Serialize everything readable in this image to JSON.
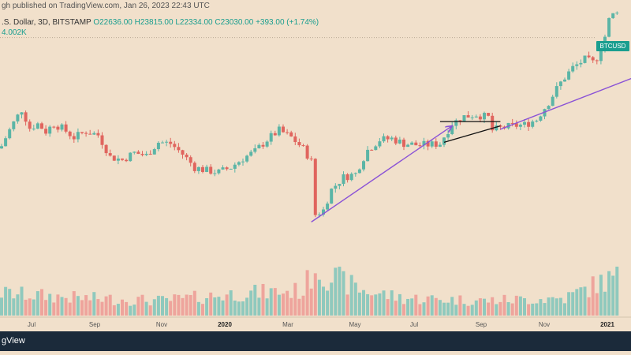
{
  "header": {
    "published": "gh published on TradingView.com, Jan 26, 2023 22:43 UTC",
    "symbol_line": ".S. Dollar, 3D, BITSTAMP",
    "ohlc": "O22636.00 H23815.00 L22334.00 C23030.00 +393.00 (+1.74%)",
    "volume": "4.002K"
  },
  "price_label": "BTCUSD",
  "footer": {
    "brand": "gView"
  },
  "colors": {
    "up": "#5bb5a6",
    "down": "#e0655e",
    "up_vol": "#8fc9bd",
    "down_vol": "#eea49c",
    "background": "#f1e0cb",
    "annotation": "#8a52d6"
  },
  "chart_data": {
    "type": "candlestick",
    "timeframe": "3D",
    "x_ticks": [
      "Jul",
      "Sep",
      "Nov",
      "2020",
      "Mar",
      "May",
      "Jul",
      "Sep",
      "Nov",
      "2021"
    ],
    "bold_ticks": [
      "2020",
      "2021"
    ],
    "y_scale": "log",
    "y_range": [
      3500,
      29000
    ],
    "grid": false,
    "keyframes_close": [
      [
        0,
        9000
      ],
      [
        3,
        11000
      ],
      [
        5,
        12300
      ],
      [
        7,
        10500
      ],
      [
        9,
        10900
      ],
      [
        11,
        10200
      ],
      [
        13,
        10900
      ],
      [
        15,
        10500
      ],
      [
        18,
        9700
      ],
      [
        21,
        10200
      ],
      [
        24,
        9900
      ],
      [
        27,
        8200
      ],
      [
        30,
        8000
      ],
      [
        33,
        8500
      ],
      [
        36,
        8300
      ],
      [
        39,
        9300
      ],
      [
        42,
        9200
      ],
      [
        45,
        8400
      ],
      [
        48,
        7500
      ],
      [
        51,
        7300
      ],
      [
        54,
        7200
      ],
      [
        57,
        7500
      ],
      [
        60,
        8100
      ],
      [
        63,
        8600
      ],
      [
        66,
        9500
      ],
      [
        69,
        10300
      ],
      [
        72,
        9700
      ],
      [
        75,
        8800
      ],
      [
        77,
        7900
      ],
      [
        78,
        5000
      ],
      [
        80,
        5200
      ],
      [
        82,
        6200
      ],
      [
        85,
        6900
      ],
      [
        88,
        7100
      ],
      [
        91,
        8700
      ],
      [
        94,
        9500
      ],
      [
        97,
        9600
      ],
      [
        100,
        9200
      ],
      [
        103,
        9100
      ],
      [
        106,
        9100
      ],
      [
        109,
        9200
      ],
      [
        112,
        10900
      ],
      [
        115,
        11600
      ],
      [
        118,
        11800
      ],
      [
        121,
        11500
      ],
      [
        122,
        10300
      ],
      [
        124,
        10500
      ],
      [
        127,
        10700
      ],
      [
        130,
        10800
      ],
      [
        133,
        11300
      ],
      [
        136,
        13100
      ],
      [
        139,
        15500
      ],
      [
        142,
        17600
      ],
      [
        145,
        18900
      ],
      [
        147,
        18400
      ],
      [
        148,
        19200
      ],
      [
        150,
        23000
      ],
      [
        151,
        26500
      ],
      [
        153,
        29000
      ]
    ],
    "volume_profile": [
      [
        0,
        0.45
      ],
      [
        20,
        0.35
      ],
      [
        40,
        0.3
      ],
      [
        60,
        0.45
      ],
      [
        75,
        0.5
      ],
      [
        78,
        1.0
      ],
      [
        80,
        0.85
      ],
      [
        90,
        0.5
      ],
      [
        100,
        0.35
      ],
      [
        120,
        0.3
      ],
      [
        140,
        0.35
      ],
      [
        150,
        0.7
      ],
      [
        153,
        0.75
      ]
    ],
    "annotations": [
      {
        "type": "arrow",
        "from": [
          77,
          4700
        ],
        "to": [
          112,
          10700
        ]
      },
      {
        "type": "arrow",
        "from": [
          124,
          10400
        ],
        "to": [
          173,
          20000
        ]
      },
      {
        "type": "line",
        "from": [
          109,
          11100
        ],
        "to": [
          124,
          11100
        ]
      },
      {
        "type": "line",
        "from": [
          110,
          9300
        ],
        "to": [
          124,
          10700
        ]
      }
    ],
    "horizontal_line": 22800,
    "legend": "none"
  }
}
